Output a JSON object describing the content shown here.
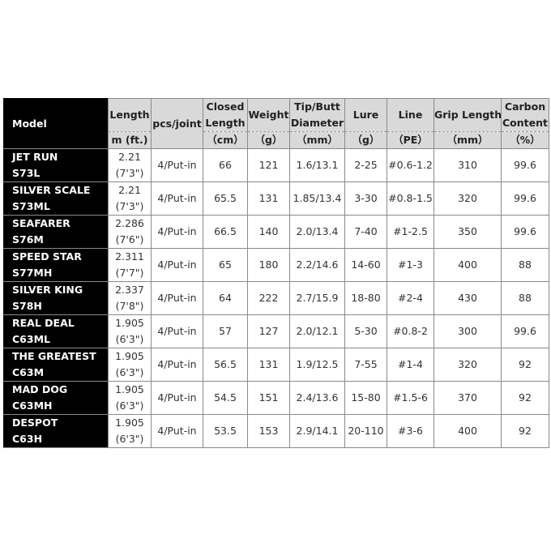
{
  "headers": [
    {
      "label": [
        "Model"
      ],
      "unit": ""
    },
    {
      "label": [
        "Length"
      ],
      "unit": "m (ft.)"
    },
    {
      "label": [
        "pcs/joint"
      ],
      "unit": ""
    },
    {
      "label": [
        "Closed",
        "Length"
      ],
      "unit": "（cm）"
    },
    {
      "label": [
        "Weight"
      ],
      "unit": "（g）"
    },
    {
      "label": [
        "Tip/Butt",
        "Diameter"
      ],
      "unit": "（mm）"
    },
    {
      "label": [
        "Lure"
      ],
      "unit": "（g）"
    },
    {
      "label": [
        "Line"
      ],
      "unit": "（PE）"
    },
    {
      "label": [
        "Grip Length"
      ],
      "unit": "（mm）"
    },
    {
      "label": [
        "Carbon",
        "Content"
      ],
      "unit": "（%）"
    }
  ],
  "rows": [
    {
      "name": "JET RUN",
      "code": "S73L",
      "length_m": "2.21",
      "length_ft": "(7'3\")",
      "pcs": "4/Put-in",
      "closed": "66",
      "weight": "121",
      "diameter": "1.6/13.1",
      "lure": "2-25",
      "line": "#0.6-1.2",
      "grip": "310",
      "carbon": "99.6"
    },
    {
      "name": "SILVER SCALE",
      "code": "S73ML",
      "length_m": "2.21",
      "length_ft": "(7'3\")",
      "pcs": "4/Put-in",
      "closed": "65.5",
      "weight": "131",
      "diameter": "1.85/13.4",
      "lure": "3-30",
      "line": "#0.8-1.5",
      "grip": "320",
      "carbon": "99.6"
    },
    {
      "name": "SEAFARER",
      "code": "S76M",
      "length_m": "2.286",
      "length_ft": "(7'6\")",
      "pcs": "4/Put-in",
      "closed": "66.5",
      "weight": "140",
      "diameter": "2.0/13.4",
      "lure": "7-40",
      "line": "#1-2.5",
      "grip": "350",
      "carbon": "99.6"
    },
    {
      "name": "SPEED STAR",
      "code": "S77MH",
      "length_m": "2.311",
      "length_ft": "(7'7\")",
      "pcs": "4/Put-in",
      "closed": "65",
      "weight": "180",
      "diameter": "2.2/14.6",
      "lure": "14-60",
      "line": "#1-3",
      "grip": "400",
      "carbon": "88"
    },
    {
      "name": "SILVER KING",
      "code": "S78H",
      "length_m": "2.337",
      "length_ft": "(7'8\")",
      "pcs": "4/Put-in",
      "closed": "64",
      "weight": "222",
      "diameter": "2.7/15.9",
      "lure": "18-80",
      "line": "#2-4",
      "grip": "430",
      "carbon": "88"
    },
    {
      "name": "REAL DEAL",
      "code": "C63ML",
      "length_m": "1.905",
      "length_ft": "(6'3\")",
      "pcs": "4/Put-in",
      "closed": "57",
      "weight": "127",
      "diameter": "2.0/12.1",
      "lure": "5-30",
      "line": "#0.8-2",
      "grip": "300",
      "carbon": "99.6"
    },
    {
      "name": "THE GREATEST",
      "code": "C63M",
      "length_m": "1.905",
      "length_ft": "(6'3\")",
      "pcs": "4/Put-in",
      "closed": "56.5",
      "weight": "131",
      "diameter": "1.9/12.5",
      "lure": "7-55",
      "line": "#1-4",
      "grip": "320",
      "carbon": "92"
    },
    {
      "name": "MAD DOG",
      "code": "C63MH",
      "length_m": "1.905",
      "length_ft": "(6'3\")",
      "pcs": "4/Put-in",
      "closed": "54.5",
      "weight": "151",
      "diameter": "2.4/13.6",
      "lure": "15-80",
      "line": "#1.5-6",
      "grip": "370",
      "carbon": "92"
    },
    {
      "name": "DESPOT",
      "code": "C63H",
      "length_m": "1.905",
      "length_ft": "(6'3\")",
      "pcs": "4/Put-in",
      "closed": "53.5",
      "weight": "153",
      "diameter": "2.9/14.1",
      "lure": "20-110",
      "line": "#3-6",
      "grip": "400",
      "carbon": "92"
    }
  ]
}
